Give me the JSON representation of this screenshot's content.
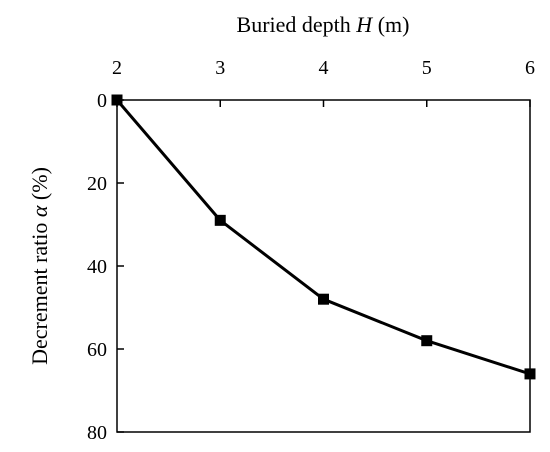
{
  "chart_data": {
    "type": "line",
    "xlabel": {
      "prefix": "Buried depth ",
      "symbol": "H",
      "suffix": " (m)"
    },
    "ylabel": {
      "prefix": "Decrement ratio ",
      "symbol": "α",
      "suffix": " (%)"
    },
    "x_ticks": [
      "2",
      "3",
      "4",
      "5",
      "6"
    ],
    "y_ticks": [
      "0",
      "20",
      "40",
      "60",
      "80"
    ],
    "xlim": [
      2,
      6
    ],
    "ylim": [
      0,
      80
    ],
    "x_axis_position": "top",
    "y_axis_inverted": true,
    "grid": false,
    "marker": "square",
    "line_color": "#000000",
    "series": [
      {
        "x": [
          2,
          3,
          4,
          5,
          6
        ],
        "y": [
          0,
          29,
          48,
          58,
          66
        ]
      }
    ]
  }
}
